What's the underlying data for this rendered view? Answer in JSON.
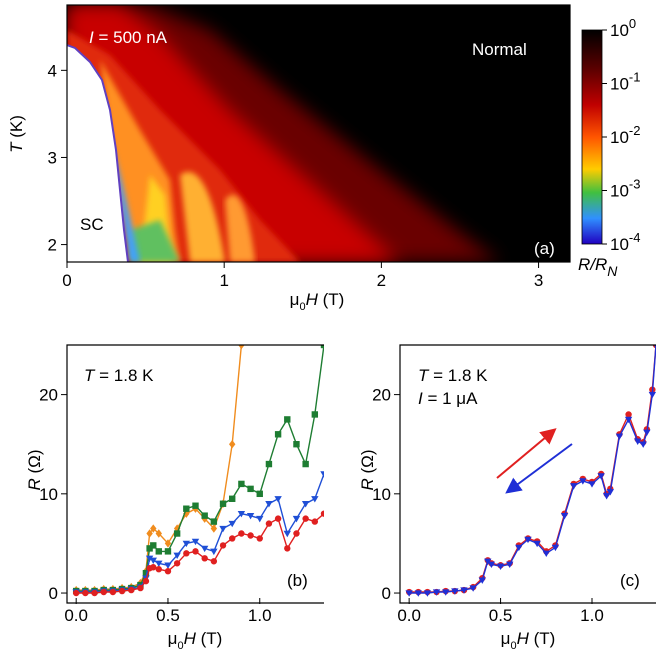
{
  "chart_data": [
    {
      "type": "heatmap",
      "panel_label": "(a)",
      "annotation_current": "I = 500 nA",
      "annotation_normal": "Normal",
      "annotation_sc": "SC",
      "xlabel": "μ0H (T)",
      "ylabel": "T (K)",
      "xlim": [
        0,
        3.2
      ],
      "ylim": [
        1.8,
        4.75
      ],
      "xticks": [
        0,
        1,
        2,
        3
      ],
      "yticks": [
        2,
        3,
        4
      ],
      "colorbar": {
        "label": "R/RN",
        "scale": "log",
        "range": [
          0.0001,
          1
        ],
        "ticks": [
          "10^0",
          "10^-1",
          "10^-2",
          "10^-3",
          "10^-4"
        ],
        "colors": [
          "#000000",
          "#c00000",
          "#ff5500",
          "#ffcc00",
          "#40c040",
          "#3090ff",
          "#2000c0"
        ]
      },
      "phase_boundary_Hc2": {
        "T": [
          4.3,
          4.2,
          4.0,
          3.7,
          3.4,
          3.0,
          2.6,
          2.2,
          1.9,
          1.8
        ],
        "H": [
          0.0,
          0.06,
          0.15,
          0.22,
          0.28,
          0.32,
          0.35,
          0.37,
          0.39,
          0.4
        ]
      },
      "normal_boundary": {
        "T": [
          4.75,
          4.3,
          4.0,
          3.5,
          3.0,
          2.5,
          2.0,
          1.8
        ],
        "H": [
          0.55,
          0.65,
          0.85,
          1.2,
          1.6,
          2.05,
          2.5,
          2.65
        ]
      }
    },
    {
      "type": "line",
      "panel_label": "(b)",
      "annotation": "T = 1.8 K",
      "xlabel": "μ0H (T)",
      "ylabel": "R (Ω)",
      "xlim": [
        -0.05,
        1.35
      ],
      "ylim": [
        -0.5,
        25
      ],
      "xticks": [
        0.0,
        0.5,
        1.0
      ],
      "yticks": [
        0,
        10,
        20
      ],
      "x": [
        0.0,
        0.05,
        0.1,
        0.15,
        0.2,
        0.25,
        0.3,
        0.35,
        0.38,
        0.4,
        0.42,
        0.45,
        0.5,
        0.55,
        0.6,
        0.65,
        0.7,
        0.75,
        0.8,
        0.85,
        0.9,
        0.95,
        1.0,
        1.05,
        1.1,
        1.15,
        1.2,
        1.25,
        1.3,
        1.35
      ],
      "series": [
        {
          "color": "#f08c1e",
          "marker": "diamond",
          "values": [
            0.3,
            0.3,
            0.3,
            0.4,
            0.4,
            0.5,
            0.6,
            1.0,
            2.2,
            6.0,
            6.5,
            6.0,
            5.0,
            6.5,
            8.0,
            8.5,
            7.5,
            6.5,
            9.0,
            15.0,
            25.0,
            null,
            null,
            null,
            null,
            null,
            null,
            null,
            null,
            null
          ]
        },
        {
          "color": "#1e7d32",
          "marker": "square",
          "values": [
            0.2,
            0.2,
            0.2,
            0.3,
            0.3,
            0.4,
            0.5,
            0.8,
            2.0,
            4.5,
            4.8,
            4.2,
            4.2,
            6.0,
            8.5,
            8.8,
            7.8,
            7.2,
            9.0,
            9.5,
            11.0,
            10.5,
            10.0,
            13.0,
            16.0,
            17.5,
            15.0,
            13.0,
            18.0,
            25.0
          ]
        },
        {
          "color": "#1f4fd6",
          "marker": "triangle-down",
          "values": [
            0.1,
            0.1,
            0.1,
            0.2,
            0.2,
            0.3,
            0.4,
            0.6,
            1.5,
            3.5,
            3.3,
            3.0,
            2.8,
            3.8,
            5.0,
            5.2,
            4.5,
            4.2,
            6.5,
            7.0,
            8.0,
            7.8,
            7.5,
            9.0,
            9.5,
            6.0,
            7.5,
            9.0,
            9.5,
            12.0
          ]
        },
        {
          "color": "#e02020",
          "marker": "circle",
          "values": [
            0.0,
            0.0,
            0.0,
            0.1,
            0.1,
            0.2,
            0.3,
            0.5,
            1.2,
            2.5,
            2.6,
            2.4,
            2.2,
            3.0,
            4.0,
            4.2,
            3.5,
            3.2,
            4.8,
            5.5,
            6.0,
            5.8,
            5.5,
            7.0,
            7.5,
            4.5,
            6.0,
            7.5,
            7.2,
            8.0
          ]
        }
      ]
    },
    {
      "type": "line",
      "panel_label": "(c)",
      "annotation_T": "T = 1.8 K",
      "annotation_I": "I = 1 μA",
      "xlabel": "μ0H (T)",
      "ylabel": "R (Ω)",
      "xlim": [
        -0.05,
        1.35
      ],
      "ylim": [
        -0.5,
        25
      ],
      "xticks": [
        0.0,
        0.5,
        1.0
      ],
      "yticks": [
        0,
        10,
        20
      ],
      "arrow_up_color": "#e02020",
      "arrow_down_color": "#1f2fd6",
      "x": [
        0.0,
        0.05,
        0.1,
        0.15,
        0.2,
        0.25,
        0.3,
        0.35,
        0.4,
        0.43,
        0.45,
        0.5,
        0.55,
        0.6,
        0.65,
        0.7,
        0.75,
        0.8,
        0.85,
        0.9,
        0.95,
        1.0,
        1.05,
        1.08,
        1.1,
        1.15,
        1.2,
        1.25,
        1.28,
        1.3,
        1.33,
        1.35
      ],
      "series": [
        {
          "color": "#e02020",
          "marker": "circle",
          "values": [
            0.1,
            0.1,
            0.1,
            0.1,
            0.2,
            0.2,
            0.3,
            0.6,
            1.5,
            3.3,
            3.0,
            2.8,
            3.0,
            4.8,
            5.5,
            5.2,
            4.2,
            4.8,
            8.0,
            11.0,
            11.5,
            11.2,
            12.0,
            10.0,
            10.5,
            16.0,
            18.0,
            15.5,
            15.2,
            16.5,
            20.5,
            25.0
          ]
        },
        {
          "color": "#1f2fd6",
          "marker": "triangle-down",
          "values": [
            0.0,
            0.0,
            0.0,
            0.1,
            0.1,
            0.2,
            0.3,
            0.5,
            1.3,
            3.2,
            2.9,
            2.7,
            2.9,
            4.6,
            5.4,
            5.0,
            4.0,
            4.6,
            7.8,
            10.8,
            11.3,
            11.0,
            11.8,
            9.8,
            10.2,
            15.8,
            17.5,
            15.3,
            15.0,
            16.2,
            20.0,
            25.0
          ]
        }
      ]
    }
  ]
}
